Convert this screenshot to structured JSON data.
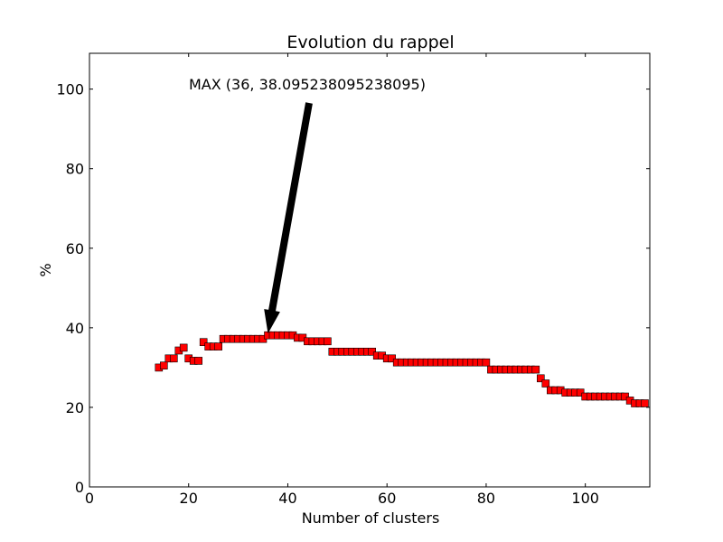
{
  "chart_data": {
    "type": "scatter",
    "title": "Evolution du rappel",
    "xlabel": "Number of clusters",
    "ylabel": "%",
    "xlim": [
      0,
      113
    ],
    "ylim": [
      0,
      109
    ],
    "xticks": [
      0,
      20,
      40,
      60,
      80,
      100
    ],
    "yticks": [
      0,
      20,
      40,
      60,
      80,
      100
    ],
    "grid": false,
    "marker": "square",
    "marker_color": "#ff0000",
    "annotation": {
      "text": "MAX (36, 38.095238095238095)",
      "x": 36,
      "y": 38.095238095238095
    },
    "series": [
      {
        "x": [
          14,
          15,
          16,
          17,
          18,
          19,
          20,
          21,
          22,
          23,
          24,
          25,
          26,
          27,
          28,
          29,
          30,
          31,
          32,
          33,
          34,
          35,
          36,
          37,
          38,
          39,
          40,
          41,
          42,
          43,
          44,
          45,
          46,
          47,
          48,
          49,
          50,
          51,
          52,
          53,
          54,
          55,
          56,
          57,
          58,
          59,
          60,
          61,
          62,
          63,
          64,
          65,
          66,
          67,
          68,
          69,
          70,
          71,
          72,
          73,
          74,
          75,
          76,
          77,
          78,
          79,
          80,
          81,
          82,
          83,
          84,
          85,
          86,
          87,
          88,
          89,
          90,
          91,
          92,
          93,
          94,
          95,
          96,
          97,
          98,
          99,
          100,
          101,
          102,
          103,
          104,
          105,
          106,
          107,
          108,
          109,
          110,
          111,
          112
        ],
        "y": [
          30,
          30.5,
          32.3,
          32.3,
          34.3,
          35,
          32.3,
          31.7,
          31.7,
          36.4,
          35.3,
          35.3,
          35.3,
          37.2,
          37.2,
          37.2,
          37.2,
          37.2,
          37.2,
          37.2,
          37.2,
          37.2,
          38.1,
          38.1,
          38.1,
          38.1,
          38.1,
          38.1,
          37.5,
          37.5,
          36.6,
          36.6,
          36.6,
          36.6,
          36.6,
          34,
          34,
          34,
          34,
          34,
          34,
          34,
          34,
          34,
          33,
          33,
          32.3,
          32.3,
          31.3,
          31.3,
          31.3,
          31.3,
          31.3,
          31.3,
          31.3,
          31.3,
          31.3,
          31.3,
          31.3,
          31.3,
          31.3,
          31.3,
          31.3,
          31.3,
          31.3,
          31.3,
          31.3,
          29.5,
          29.5,
          29.5,
          29.5,
          29.5,
          29.5,
          29.5,
          29.5,
          29.5,
          29.5,
          27.3,
          26,
          24.3,
          24.3,
          24.3,
          23.7,
          23.7,
          23.7,
          23.7,
          22.7,
          22.7,
          22.7,
          22.7,
          22.7,
          22.7,
          22.7,
          22.7,
          22.7,
          21.7,
          21,
          21,
          21
        ]
      }
    ]
  }
}
